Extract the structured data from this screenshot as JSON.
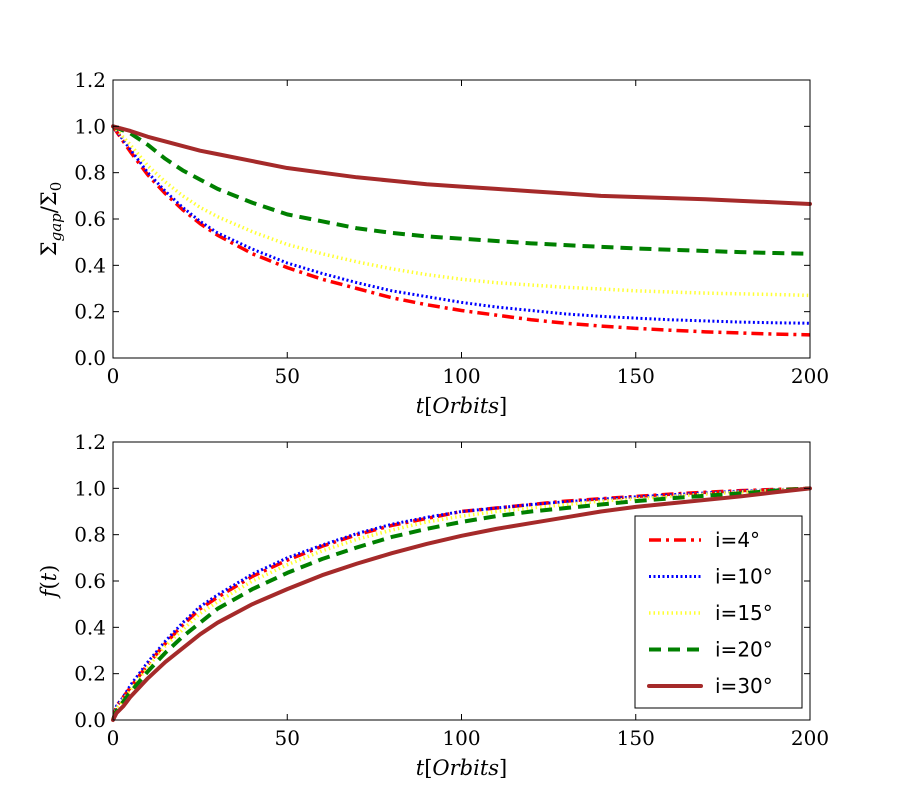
{
  "colors": {
    "i4": "#ff0000",
    "i10": "#0000ff",
    "i15": "#ffff33",
    "i20": "#008000",
    "i30": "#a52a2a"
  },
  "chart_data": [
    {
      "type": "line",
      "id": "top",
      "title": "",
      "xlabel": "t[Orbits]",
      "ylabel": "Σgap/Σ0",
      "xlim": [
        0,
        200
      ],
      "ylim": [
        0,
        1.2
      ],
      "xticks": [
        0,
        50,
        100,
        150,
        200
      ],
      "yticks": [
        0.0,
        0.2,
        0.4,
        0.6,
        0.8,
        1.0,
        1.2
      ],
      "xtick_labels": [
        "0",
        "50",
        "100",
        "150",
        "200"
      ],
      "ytick_labels": [
        "0.0",
        "0.2",
        "0.4",
        "0.6",
        "0.8",
        "1.0",
        "1.2"
      ],
      "x": [
        0,
        5,
        10,
        15,
        20,
        25,
        30,
        40,
        50,
        60,
        70,
        80,
        90,
        100,
        110,
        120,
        130,
        140,
        150,
        160,
        170,
        180,
        190,
        200
      ],
      "series": [
        {
          "name": "i=4°",
          "key": "i4",
          "style": "dashdot",
          "values": [
            1.0,
            0.89,
            0.79,
            0.71,
            0.64,
            0.58,
            0.53,
            0.45,
            0.39,
            0.34,
            0.3,
            0.26,
            0.23,
            0.205,
            0.185,
            0.165,
            0.15,
            0.138,
            0.128,
            0.12,
            0.113,
            0.108,
            0.103,
            0.1
          ]
        },
        {
          "name": "i=10°",
          "key": "i10",
          "style": "dotted",
          "values": [
            1.0,
            0.9,
            0.8,
            0.72,
            0.65,
            0.59,
            0.54,
            0.47,
            0.41,
            0.365,
            0.325,
            0.29,
            0.265,
            0.24,
            0.22,
            0.205,
            0.19,
            0.18,
            0.172,
            0.165,
            0.16,
            0.155,
            0.152,
            0.15
          ]
        },
        {
          "name": "i=15°",
          "key": "i15",
          "style": "dotted-wide",
          "values": [
            1.0,
            0.92,
            0.83,
            0.76,
            0.7,
            0.65,
            0.61,
            0.545,
            0.49,
            0.45,
            0.415,
            0.385,
            0.36,
            0.34,
            0.325,
            0.315,
            0.305,
            0.298,
            0.29,
            0.285,
            0.28,
            0.277,
            0.274,
            0.27
          ]
        },
        {
          "name": "i=20°",
          "key": "i20",
          "style": "dashed",
          "values": [
            1.0,
            0.97,
            0.92,
            0.86,
            0.81,
            0.77,
            0.73,
            0.67,
            0.62,
            0.59,
            0.56,
            0.54,
            0.525,
            0.515,
            0.505,
            0.495,
            0.487,
            0.48,
            0.473,
            0.467,
            0.462,
            0.457,
            0.453,
            0.45
          ]
        },
        {
          "name": "i=30°",
          "key": "i30",
          "style": "solid",
          "values": [
            1.0,
            0.98,
            0.955,
            0.935,
            0.915,
            0.895,
            0.88,
            0.85,
            0.82,
            0.8,
            0.78,
            0.765,
            0.75,
            0.74,
            0.73,
            0.72,
            0.71,
            0.7,
            0.695,
            0.69,
            0.685,
            0.678,
            0.672,
            0.665
          ]
        }
      ]
    },
    {
      "type": "line",
      "id": "bottom",
      "title": "",
      "xlabel": "t[Orbits]",
      "ylabel": "f(t)",
      "xlim": [
        0,
        200
      ],
      "ylim": [
        0,
        1.2
      ],
      "xticks": [
        0,
        50,
        100,
        150,
        200
      ],
      "yticks": [
        0.0,
        0.2,
        0.4,
        0.6,
        0.8,
        1.0,
        1.2
      ],
      "xtick_labels": [
        "0",
        "50",
        "100",
        "150",
        "200"
      ],
      "ytick_labels": [
        "0.0",
        "0.2",
        "0.4",
        "0.6",
        "0.8",
        "1.0",
        "1.2"
      ],
      "x": [
        0,
        1,
        3,
        5,
        10,
        15,
        20,
        25,
        30,
        40,
        50,
        60,
        70,
        80,
        90,
        100,
        110,
        120,
        130,
        140,
        150,
        160,
        170,
        180,
        190,
        200
      ],
      "series": [
        {
          "name": "i=4°",
          "key": "i4",
          "style": "dashdot",
          "values": [
            0.0,
            0.06,
            0.1,
            0.14,
            0.24,
            0.33,
            0.41,
            0.48,
            0.53,
            0.62,
            0.69,
            0.75,
            0.8,
            0.84,
            0.87,
            0.9,
            0.915,
            0.93,
            0.945,
            0.955,
            0.965,
            0.975,
            0.983,
            0.99,
            0.995,
            1.0
          ]
        },
        {
          "name": "i=10°",
          "key": "i10",
          "style": "dotted",
          "values": [
            0.0,
            0.06,
            0.1,
            0.15,
            0.25,
            0.34,
            0.42,
            0.49,
            0.54,
            0.63,
            0.7,
            0.755,
            0.805,
            0.845,
            0.875,
            0.9,
            0.915,
            0.93,
            0.942,
            0.953,
            0.963,
            0.972,
            0.98,
            0.988,
            0.994,
            1.0
          ]
        },
        {
          "name": "i=15°",
          "key": "i15",
          "style": "dotted-wide",
          "values": [
            0.0,
            0.05,
            0.09,
            0.13,
            0.23,
            0.32,
            0.39,
            0.46,
            0.51,
            0.6,
            0.67,
            0.73,
            0.78,
            0.82,
            0.855,
            0.88,
            0.9,
            0.915,
            0.93,
            0.945,
            0.955,
            0.965,
            0.975,
            0.984,
            0.992,
            1.0
          ]
        },
        {
          "name": "i=20°",
          "key": "i20",
          "style": "dashed",
          "values": [
            0.0,
            0.04,
            0.08,
            0.12,
            0.21,
            0.29,
            0.36,
            0.42,
            0.48,
            0.565,
            0.635,
            0.695,
            0.745,
            0.79,
            0.825,
            0.855,
            0.88,
            0.9,
            0.915,
            0.93,
            0.945,
            0.957,
            0.968,
            0.978,
            0.99,
            1.0
          ]
        },
        {
          "name": "i=30°",
          "key": "i30",
          "style": "solid",
          "values": [
            0.0,
            0.03,
            0.06,
            0.1,
            0.18,
            0.25,
            0.31,
            0.37,
            0.42,
            0.5,
            0.565,
            0.625,
            0.675,
            0.72,
            0.76,
            0.795,
            0.825,
            0.85,
            0.875,
            0.9,
            0.92,
            0.935,
            0.95,
            0.965,
            0.983,
            1.0
          ]
        }
      ],
      "legend": {
        "position": "lower-right",
        "entries": [
          "i=4°",
          "i=10°",
          "i=15°",
          "i=20°",
          "i=30°"
        ]
      }
    }
  ]
}
